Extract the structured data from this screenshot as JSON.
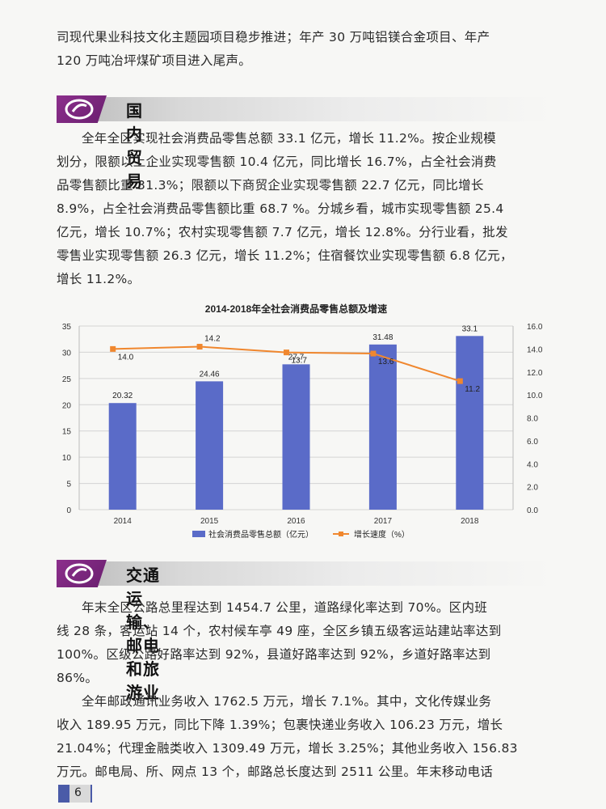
{
  "intro": {
    "lines": [
      "司现代果业科技文化主题园项目稳步推进；年产 30 万吨铝镁合金项目、年产",
      "120 万吨冶坪煤矿项目进入尾声。"
    ]
  },
  "sections": [
    {
      "title": "国内贸易",
      "paragraph_lines": [
        "全年全区实现社会消费品零售总额 33.1 亿元，增长 11.2%。按企业规模",
        "划分，限额以上企业实现零售额 10.4 亿元，同比增长 16.7%，占全社会消费",
        "品零售额比重 31.3%；限额以下商贸企业实现零售额 22.7 亿元，同比增长",
        "8.9%，占全社会消费品零售额比重 68.7 %。分城乡看，城市实现零售额 25.4",
        "亿元，增长 10.7%；农村实现零售额 7.7 亿元，增长 12.8%。分行业看，批发",
        "零售业实现零售额 26.3 亿元，增长 11.2%；住宿餐饮业实现零售额 6.8 亿元，",
        "增长 11.2%。"
      ]
    },
    {
      "title": "交通运输、邮电和旅游业",
      "paragraph1_lines": [
        "年末全区公路总里程达到 1454.7 公里，道路绿化率达到 70%。区内班",
        "线 28 条，客运站 14 个，农村候车亭 49 座，全区乡镇五级客运站建站率达到",
        "100%。区级公路好路率达到 92%，县道好路率达到 92%，乡道好路率达到",
        "86%。"
      ],
      "paragraph2_lines": [
        "全年邮政通讯业务收入 1762.5 万元，增长 7.1%。其中，文化传媒业务",
        "收入 189.95 万元，同比下降 1.39%；包裹快递业务收入 106.23 万元，增长",
        "21.04%；代理金融类收入 1309.49 万元，增长 3.25%；其他业务收入 156.83",
        "万元。邮电局、所、网点 13 个，邮路总长度达到 2511 公里。年末移动电话"
      ]
    }
  ],
  "chart_data": {
    "type": "bar",
    "title": "2014-2018年全社会消费品零售总额及增速",
    "categories": [
      "2014",
      "2015",
      "2016",
      "2017",
      "2018"
    ],
    "series": [
      {
        "name": "社会消费品零售总额（亿元）",
        "type": "bar",
        "axis": "left",
        "values": [
          20.32,
          24.46,
          27.7,
          31.48,
          33.1
        ],
        "labels": [
          "20.32",
          "24.46",
          "27.7",
          "31.48",
          "33.1"
        ],
        "color": "#5a6bc8"
      },
      {
        "name": "增长速度（%）",
        "type": "line",
        "axis": "right",
        "values": [
          14.0,
          14.2,
          13.7,
          13.6,
          11.2
        ],
        "labels": [
          "14.0",
          "14.2",
          "13.7",
          "13.6",
          "11.2"
        ],
        "color": "#f0872e"
      }
    ],
    "y_left": {
      "min": 0,
      "max": 35,
      "ticks": [
        "0",
        "5",
        "10",
        "15",
        "20",
        "25",
        "30",
        "35"
      ]
    },
    "y_right": {
      "min": 0,
      "max": 16,
      "ticks": [
        "0.0",
        "2.0",
        "4.0",
        "6.0",
        "8.0",
        "10.0",
        "12.0",
        "14.0",
        "16.0"
      ]
    },
    "grid": true,
    "legend_position": "bottom"
  },
  "footer": {
    "page_number": "6"
  }
}
